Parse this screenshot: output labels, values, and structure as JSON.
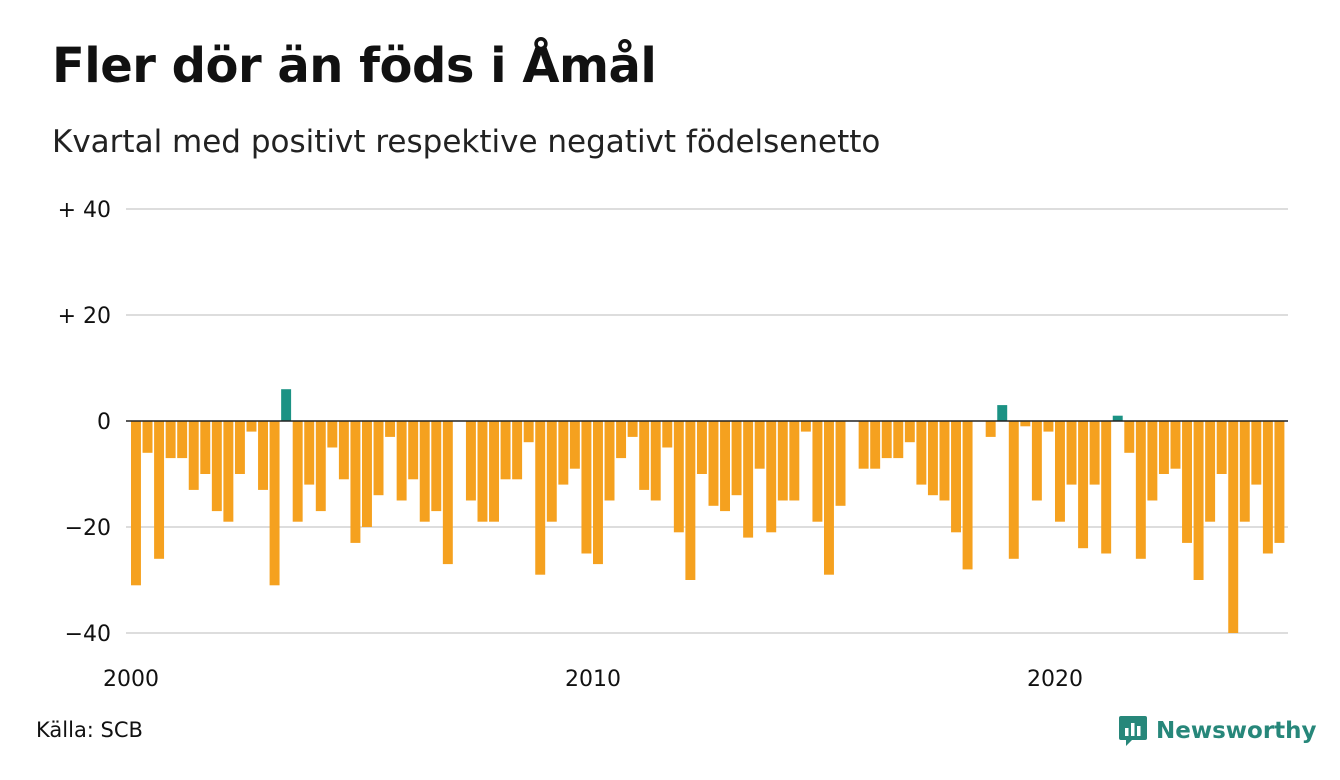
{
  "header": {
    "title": "Fler dör än föds i Åmål",
    "subtitle": "Kvartal med positivt respektive negativt födelsenetto"
  },
  "footer": {
    "source": "Källa: SCB",
    "brand": "Newsworthy",
    "brand_icon": "newsworthy-logo-icon"
  },
  "colors": {
    "negative": "#f5a11f",
    "positive": "#1b9284",
    "grid": "#dddddd",
    "zero_line": "#222222",
    "brand": "#27877a"
  },
  "chart_data": {
    "type": "bar",
    "title": "Fler dör än föds i Åmål",
    "subtitle": "Kvartal med positivt respektive negativt födelsenetto",
    "xlabel": "",
    "ylabel": "",
    "ylim": [
      -40,
      40
    ],
    "yticks": [
      {
        "value": 40,
        "label": "+ 40"
      },
      {
        "value": 20,
        "label": "+ 20"
      },
      {
        "value": 0,
        "label": "0"
      },
      {
        "value": -20,
        "label": "−20"
      },
      {
        "value": -40,
        "label": "−40"
      }
    ],
    "xticks": [
      {
        "year": 2000,
        "label": "2000"
      },
      {
        "year": 2010,
        "label": "2010"
      },
      {
        "year": 2020,
        "label": "2020"
      }
    ],
    "grid": true,
    "start_year": 2000,
    "periods_per_year": 4,
    "values": [
      -31,
      -6,
      -26,
      -7,
      -7,
      -13,
      -10,
      -17,
      -19,
      -10,
      -2,
      -13,
      -31,
      6,
      -19,
      -12,
      -17,
      -5,
      -11,
      -23,
      -20,
      -14,
      -3,
      -15,
      -11,
      -19,
      -17,
      -27,
      0,
      -15,
      -19,
      -19,
      -11,
      -11,
      -4,
      -29,
      -19,
      -12,
      -9,
      -25,
      -27,
      -15,
      -7,
      -3,
      -13,
      -15,
      -5,
      -21,
      -30,
      -10,
      -16,
      -17,
      -14,
      -22,
      -9,
      -21,
      -15,
      -15,
      -2,
      -19,
      -29,
      -16,
      0,
      -9,
      -9,
      -7,
      -7,
      -4,
      -12,
      -14,
      -15,
      -21,
      -28,
      0,
      -3,
      3,
      -26,
      -1,
      -15,
      -2,
      -19,
      -12,
      -24,
      -12,
      -25,
      1,
      -6,
      -26,
      -15,
      -10,
      -9,
      -23,
      -30,
      -19,
      -10,
      -40,
      -19,
      -12,
      -25,
      -23
    ]
  }
}
